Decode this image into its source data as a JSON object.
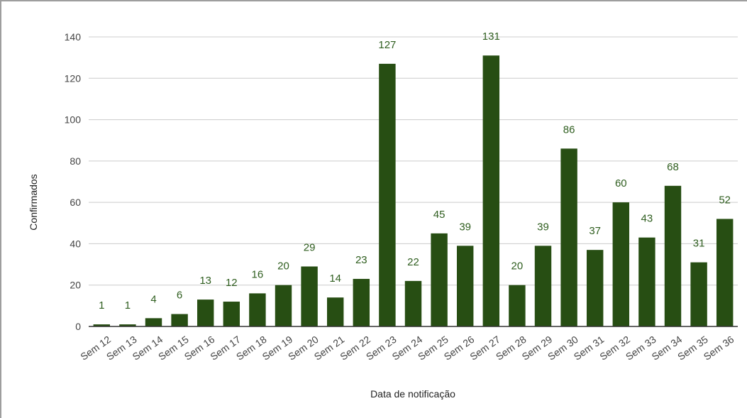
{
  "chart_data": {
    "type": "bar",
    "xlabel": "Data de notificação",
    "ylabel": "Confirmados",
    "ylim": [
      0,
      140
    ],
    "yticks": [
      "0",
      "20",
      "40",
      "60",
      "80",
      "100",
      "120",
      "140"
    ],
    "ytick_values": [
      0,
      20,
      40,
      60,
      80,
      100,
      120,
      140
    ],
    "grid": true,
    "legend": "none",
    "bar_color": "#274e13",
    "label_color": "#2f5e1f",
    "categories": [
      "Sem 12",
      "Sem 13",
      "Sem 14",
      "Sem 15",
      "Sem 16",
      "Sem 17",
      "Sem 18",
      "Sem 19",
      "Sem 20",
      "Sem 21",
      "Sem 22",
      "Sem 23",
      "Sem 24",
      "Sem 25",
      "Sem 26",
      "Sem 27",
      "Sem 28",
      "Sem 29",
      "Sem 30",
      "Sem 31",
      "Sem 32",
      "Sem 33",
      "Sem 34",
      "Sem 35",
      "Sem 36"
    ],
    "values": [
      1,
      1,
      4,
      6,
      13,
      12,
      16,
      20,
      29,
      14,
      23,
      127,
      22,
      45,
      39,
      131,
      20,
      39,
      86,
      37,
      60,
      43,
      68,
      31,
      52
    ],
    "data_labels": [
      "1",
      "1",
      "4",
      "6",
      "13",
      "12",
      "16",
      "20",
      "29",
      "14",
      "23",
      "127",
      "22",
      "45",
      "39",
      "131",
      "20",
      "39",
      "86",
      "37",
      "60",
      "43",
      "68",
      "31",
      "52"
    ]
  }
}
